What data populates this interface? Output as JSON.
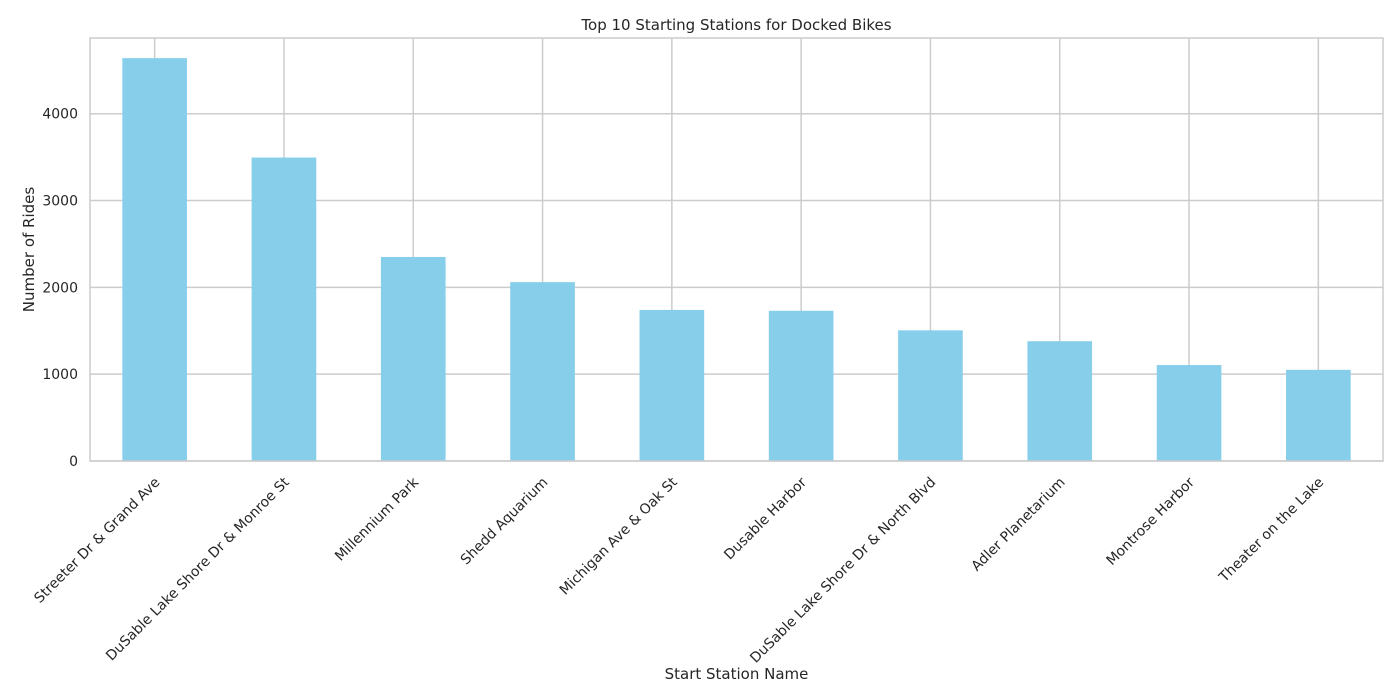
{
  "chart_data": {
    "type": "bar",
    "title": "Top 10 Starting Stations for Docked Bikes",
    "xlabel": "Start Station Name",
    "ylabel": "Number of Rides",
    "categories": [
      "Streeter Dr & Grand Ave",
      "DuSable Lake Shore Dr & Monroe St",
      "Millennium Park",
      "Shedd Aquarium",
      "Michigan Ave & Oak St",
      "Dusable Harbor",
      "DuSable Lake Shore Dr & North Blvd",
      "Adler Planetarium",
      "Montrose Harbor",
      "Theater on the Lake"
    ],
    "values": [
      4640,
      3495,
      2350,
      2060,
      1740,
      1730,
      1505,
      1380,
      1105,
      1050
    ],
    "ylim": [
      0,
      4872
    ],
    "yticks": [
      0,
      1000,
      2000,
      3000,
      4000
    ],
    "ytick_labels": [
      "0",
      "1000",
      "2000",
      "3000",
      "4000"
    ],
    "grid": true,
    "legend": "none",
    "colors": {
      "bar": "#87ceeb",
      "grid": "#cccccc",
      "text": "#262626"
    }
  }
}
